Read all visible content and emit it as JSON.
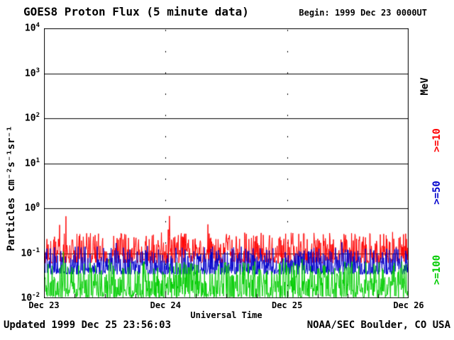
{
  "header": {
    "title": "GOES8 Proton Flux (5 minute data)",
    "begin_label": "Begin: 1999 Dec 23 0000UT"
  },
  "footer": {
    "updated": "Updated 1999 Dec 25 23:56:03",
    "source": "NOAA/SEC Boulder, CO USA"
  },
  "chart_data": {
    "type": "line",
    "title": "GOES8 Proton Flux (5 minute data)",
    "begin": "1999 Dec 23 0000UT",
    "updated": "1999 Dec 25 23:56:03",
    "xlabel": "Universal Time",
    "ylabel": "Particles cm⁻²s⁻¹sr⁻¹",
    "right_axis_unit": "MeV",
    "x_tick_labels": [
      "Dec 23",
      "Dec 24",
      "Dec 25",
      "Dec 26"
    ],
    "y_tick_base": "10",
    "y_tick_exponents": [
      4,
      3,
      2,
      1,
      0,
      -1,
      -2
    ],
    "y_scale": "log",
    "ylim": [
      0.01,
      10000
    ],
    "x_span_days": 3,
    "sample_interval_minutes": 5,
    "grid": {
      "horizontal": "solid",
      "vertical": "dotted",
      "vertical_positions": [
        "Dec 24",
        "Dec 25"
      ]
    },
    "series": [
      {
        "name": ">=10",
        "color": "#FF0000",
        "median_flux": 0.1,
        "flux_range": [
          0.05,
          0.7
        ],
        "synth": {
          "log10_floor": -1.22,
          "log10_band": 0.68,
          "spike_prob": 0.04,
          "spike_extra": 0.42
        }
      },
      {
        "name": ">=50",
        "color": "#0000CC",
        "median_flux": 0.055,
        "flux_range": [
          0.03,
          0.3
        ],
        "synth": {
          "log10_floor": -1.47,
          "log10_band": 0.62,
          "spike_prob": 0.03,
          "spike_extra": 0.3
        }
      },
      {
        "name": ">=100",
        "color": "#00CC00",
        "median_flux": 0.02,
        "flux_range": [
          0.01,
          0.12
        ],
        "synth": {
          "log10_floor": -1.98,
          "log10_band": 0.8,
          "spike_prob": 0.03,
          "spike_extra": 0.25
        }
      }
    ],
    "seed": 20241223
  }
}
